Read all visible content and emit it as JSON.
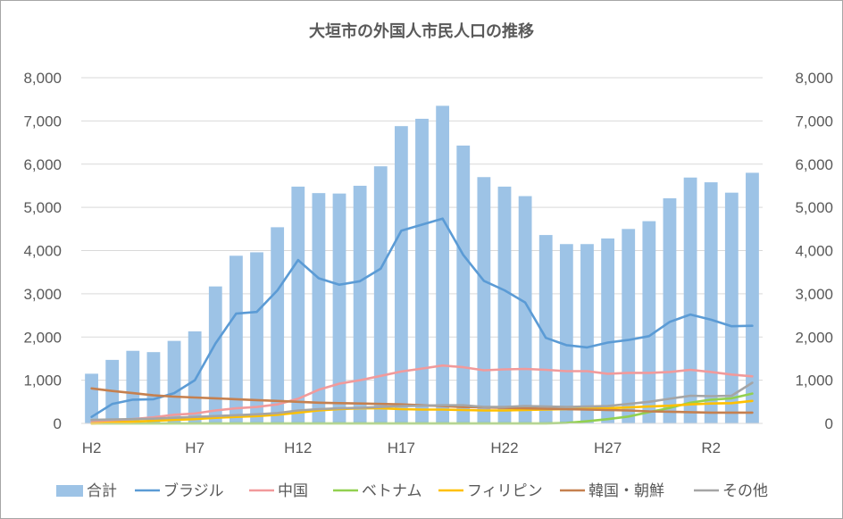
{
  "chart_data": {
    "type": "bar",
    "title": "大垣市の外国人市民人口の推移",
    "x_tick_labels": [
      "H2",
      "H7",
      "H12",
      "H17",
      "H22",
      "H27",
      "R2"
    ],
    "x_tick_positions": [
      0,
      5,
      10,
      15,
      20,
      25,
      30
    ],
    "y_ticks": [
      "0",
      "1,000",
      "2,000",
      "3,000",
      "4,000",
      "5,000",
      "6,000",
      "7,000",
      "8,000"
    ],
    "ylim": [
      0,
      8000
    ],
    "y2lim": [
      0,
      8000
    ],
    "legend_position": "bottom",
    "categories": [
      "H2",
      "H3",
      "H4",
      "H5",
      "H6",
      "H7",
      "H8",
      "H9",
      "H10",
      "H11",
      "H12",
      "H13",
      "H14",
      "H15",
      "H16",
      "H17",
      "H18",
      "H19",
      "H20",
      "H21",
      "H22",
      "H23",
      "H24",
      "H25",
      "H26",
      "H27",
      "H28",
      "H29",
      "H30",
      "R1",
      "R2",
      "R3",
      "R4"
    ],
    "bar_series": {
      "name": "合計",
      "color": "#9dc3e6",
      "values": [
        1150,
        1470,
        1680,
        1650,
        1910,
        2130,
        3170,
        3880,
        3960,
        4540,
        5480,
        5330,
        5320,
        5500,
        5950,
        6880,
        7050,
        7350,
        6430,
        5700,
        5480,
        5260,
        4360,
        4150,
        4150,
        4280,
        4500,
        4680,
        5210,
        5690,
        5580,
        5340,
        5800
      ]
    },
    "line_series": [
      {
        "name": "ブラジル",
        "color": "#5b9bd5",
        "values": [
          150,
          450,
          550,
          560,
          700,
          1000,
          1850,
          2540,
          2580,
          3080,
          3780,
          3360,
          3210,
          3290,
          3580,
          4460,
          4600,
          4740,
          3900,
          3300,
          3080,
          2800,
          1980,
          1810,
          1760,
          1870,
          1930,
          2020,
          2350,
          2520,
          2400,
          2250,
          2260
        ]
      },
      {
        "name": "中国",
        "color": "#f19a9b",
        "values": [
          30,
          50,
          100,
          140,
          200,
          230,
          300,
          350,
          380,
          440,
          570,
          780,
          920,
          1000,
          1100,
          1200,
          1270,
          1340,
          1300,
          1230,
          1250,
          1260,
          1240,
          1210,
          1210,
          1150,
          1170,
          1170,
          1190,
          1240,
          1190,
          1130,
          1090
        ]
      },
      {
        "name": "ベトナム",
        "color": "#92d050",
        "values": [
          0,
          0,
          0,
          0,
          0,
          0,
          0,
          0,
          0,
          0,
          0,
          0,
          0,
          0,
          0,
          0,
          0,
          0,
          0,
          0,
          0,
          0,
          0,
          10,
          50,
          100,
          160,
          260,
          360,
          480,
          550,
          580,
          690
        ]
      },
      {
        "name": "フィリピン",
        "color": "#ffc000",
        "values": [
          0,
          20,
          40,
          60,
          80,
          100,
          130,
          150,
          170,
          200,
          250,
          300,
          330,
          350,
          350,
          330,
          320,
          320,
          310,
          300,
          300,
          310,
          320,
          330,
          340,
          350,
          370,
          390,
          410,
          440,
          460,
          470,
          520
        ]
      },
      {
        "name": "韓国・朝鮮",
        "color": "#c5804f",
        "values": [
          810,
          750,
          700,
          650,
          620,
          600,
          580,
          560,
          540,
          520,
          500,
          480,
          470,
          460,
          450,
          440,
          420,
          400,
          380,
          370,
          360,
          350,
          340,
          330,
          320,
          310,
          300,
          280,
          270,
          260,
          250,
          250,
          250
        ]
      },
      {
        "name": "その他",
        "color": "#a5a5a5",
        "values": [
          80,
          90,
          100,
          110,
          130,
          150,
          170,
          190,
          210,
          240,
          300,
          330,
          350,
          360,
          380,
          400,
          410,
          420,
          420,
          380,
          380,
          400,
          390,
          380,
          390,
          400,
          450,
          500,
          570,
          640,
          630,
          640,
          940
        ]
      }
    ]
  }
}
